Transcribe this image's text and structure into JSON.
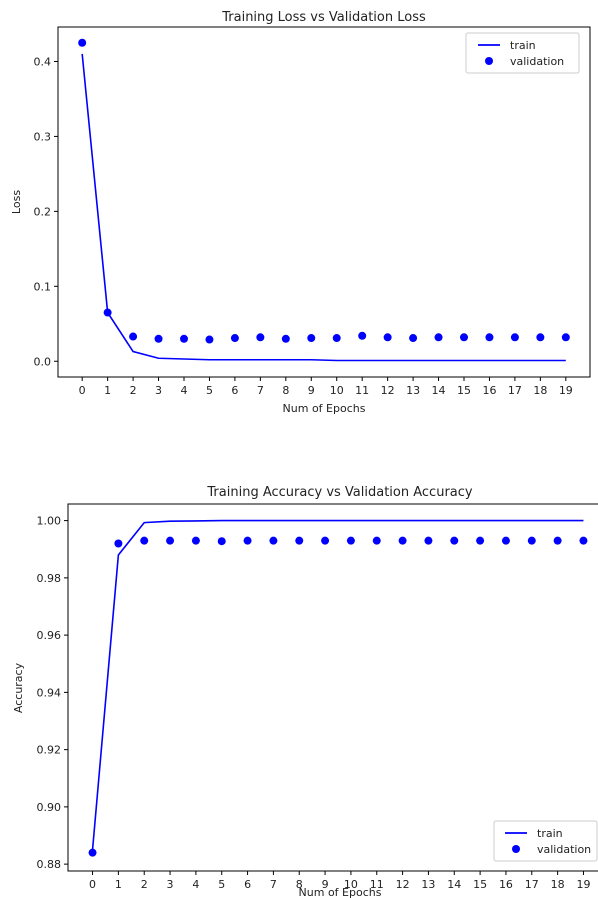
{
  "chart_data": [
    {
      "type": "line",
      "title": "Training Loss vs Validation Loss",
      "xlabel": "Num of Epochs",
      "ylabel": "Loss",
      "x": [
        0,
        1,
        2,
        3,
        4,
        5,
        6,
        7,
        8,
        9,
        10,
        11,
        12,
        13,
        14,
        15,
        16,
        17,
        18,
        19
      ],
      "xlim": [
        -0.95,
        19.95
      ],
      "ylim": [
        -0.021,
        0.446
      ],
      "yticks": [
        0.0,
        0.1,
        0.2,
        0.3,
        0.4
      ],
      "ytick_labels": [
        "0.0",
        "0.1",
        "0.2",
        "0.3",
        "0.4"
      ],
      "legend": "top-right",
      "grid": false,
      "series": [
        {
          "name": "train",
          "style": "line",
          "color": "#0000ff",
          "values": [
            0.41,
            0.065,
            0.013,
            0.004,
            0.003,
            0.002,
            0.002,
            0.002,
            0.002,
            0.002,
            0.001,
            0.001,
            0.001,
            0.001,
            0.001,
            0.001,
            0.001,
            0.001,
            0.001,
            0.001
          ]
        },
        {
          "name": "validation",
          "style": "scatter",
          "color": "#0000ff",
          "values": [
            0.425,
            0.065,
            0.033,
            0.03,
            0.03,
            0.029,
            0.031,
            0.032,
            0.03,
            0.031,
            0.031,
            0.034,
            0.032,
            0.031,
            0.032,
            0.032,
            0.032,
            0.032,
            0.032,
            0.032
          ]
        }
      ]
    },
    {
      "type": "line",
      "title": "Training Accuracy vs Validation Accuracy",
      "xlabel": "Num of Epochs",
      "ylabel": "Accuracy",
      "x": [
        0,
        1,
        2,
        3,
        4,
        5,
        6,
        7,
        8,
        9,
        10,
        11,
        12,
        13,
        14,
        15,
        16,
        17,
        18,
        19
      ],
      "xlim": [
        -0.95,
        19.95
      ],
      "ylim": [
        0.8776,
        1.0058
      ],
      "yticks": [
        0.88,
        0.9,
        0.92,
        0.94,
        0.96,
        0.98,
        1.0
      ],
      "ytick_labels": [
        "0.88",
        "0.90",
        "0.92",
        "0.94",
        "0.96",
        "0.98",
        "1.00"
      ],
      "legend": "bottom-right",
      "grid": false,
      "series": [
        {
          "name": "train",
          "style": "line",
          "color": "#0000ff",
          "values": [
            0.885,
            0.988,
            0.9993,
            0.9998,
            0.9999,
            1.0,
            1.0,
            1.0,
            1.0,
            1.0,
            1.0,
            1.0,
            1.0,
            1.0,
            1.0,
            1.0,
            1.0,
            1.0,
            1.0,
            1.0
          ]
        },
        {
          "name": "validation",
          "style": "scatter",
          "color": "#0000ff",
          "values": [
            0.884,
            0.992,
            0.993,
            0.993,
            0.993,
            0.9928,
            0.993,
            0.993,
            0.993,
            0.993,
            0.993,
            0.993,
            0.993,
            0.993,
            0.993,
            0.993,
            0.993,
            0.993,
            0.993,
            0.993
          ]
        }
      ]
    }
  ]
}
